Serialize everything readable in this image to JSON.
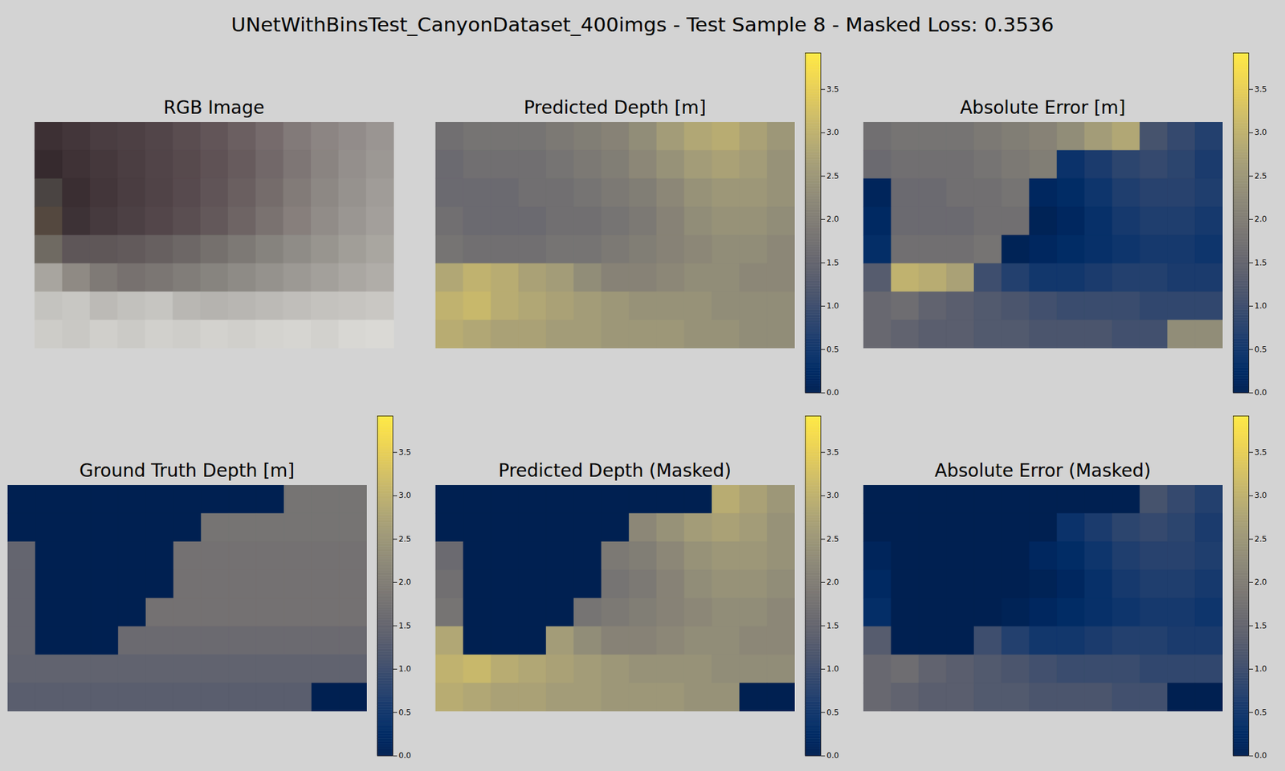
{
  "title": "UNetWithBinsTest_CanyonDataset_400imgs - Test Sample 8 - Masked Loss: 0.3536",
  "chart_data": [
    {
      "type": "image",
      "title": "RGB Image",
      "tick_labels": false,
      "cells": [
        [
          "#3d3034",
          "#43363a",
          "#4a3d41",
          "#4d4044",
          "#524549",
          "#5a4d50",
          "#625558",
          "#6b5f61",
          "#766b6c",
          "#827a79",
          "#8c8583",
          "#928c8a",
          "#9a9592"
        ],
        [
          "#362a2e",
          "#3f3236",
          "#45383c",
          "#4b3e42",
          "#514448",
          "#574a4d",
          "#5f5255",
          "#675b5d",
          "#726869",
          "#7e7675",
          "#8a8481",
          "#948f8c",
          "#9c9894"
        ],
        [
          "#4a4442",
          "#3a2e32",
          "#43363a",
          "#4a3d41",
          "#504347",
          "#574a4e",
          "#605457",
          "#6a5f60",
          "#756c6b",
          "#827b78",
          "#8d8884",
          "#96928e",
          "#a09c98"
        ],
        [
          "#54483f",
          "#3d3236",
          "#463a3e",
          "#4c4044",
          "#53464a",
          "#5a4e51",
          "#63585a",
          "#6e6464",
          "#7a7270",
          "#877f7c",
          "#918c88",
          "#9a9692",
          "#a39f9b"
        ],
        [
          "#6f6a62",
          "#5e5658",
          "#5f5758",
          "#625a5b",
          "#676060",
          "#6d6766",
          "#75706d",
          "#7d7975",
          "#86837e",
          "#8f8c87",
          "#98958f",
          "#a19e98",
          "#a9a6a0"
        ],
        [
          "#a8a59f",
          "#8f8a84",
          "#7f7a76",
          "#77716f",
          "#7b7673",
          "#817d79",
          "#87847f",
          "#8e8b86",
          "#95928d",
          "#9c9994",
          "#a3a09b",
          "#aaa7a2",
          "#b0ada8"
        ],
        [
          "#c4c3bf",
          "#c8c7c3",
          "#bcbab6",
          "#c2c1bd",
          "#c6c5c1",
          "#b9b7b3",
          "#b5b3af",
          "#b8b6b2",
          "#bcbab6",
          "#c0beba",
          "#c4c2be",
          "#c6c4c0",
          "#c9c7c3"
        ],
        [
          "#cdccc8",
          "#c9c8c4",
          "#d0cfcb",
          "#cbcac6",
          "#d1d0cc",
          "#cecdc9",
          "#d3d2ce",
          "#d0cfcb",
          "#d4d3cf",
          "#d6d5d1",
          "#d2d1cd",
          "#d8d7d3",
          "#dad9d5"
        ]
      ]
    },
    {
      "type": "heatmap",
      "title": "Predicted Depth [m]",
      "tick_labels": false,
      "cells": [
        [
          1.7,
          1.8,
          1.8,
          1.8,
          1.9,
          2.0,
          2.1,
          2.3,
          2.6,
          2.8,
          2.9,
          2.7,
          2.5
        ],
        [
          1.6,
          1.7,
          1.7,
          1.7,
          1.8,
          1.9,
          2.0,
          2.2,
          2.4,
          2.6,
          2.7,
          2.6,
          2.4
        ],
        [
          1.6,
          1.6,
          1.6,
          1.7,
          1.7,
          1.8,
          1.9,
          2.0,
          2.2,
          2.4,
          2.5,
          2.5,
          2.4
        ],
        [
          1.7,
          1.6,
          1.6,
          1.6,
          1.7,
          1.7,
          1.8,
          1.9,
          2.1,
          2.3,
          2.4,
          2.4,
          2.3
        ],
        [
          1.8,
          1.7,
          1.7,
          1.7,
          1.8,
          1.8,
          1.9,
          2.0,
          2.1,
          2.2,
          2.3,
          2.3,
          2.2
        ],
        [
          2.8,
          3.0,
          2.9,
          2.7,
          2.6,
          2.3,
          2.1,
          2.1,
          2.2,
          2.3,
          2.3,
          2.2,
          2.2
        ],
        [
          3.0,
          3.1,
          2.9,
          2.8,
          2.7,
          2.6,
          2.5,
          2.4,
          2.4,
          2.4,
          2.3,
          2.3,
          2.3
        ],
        [
          2.9,
          2.8,
          2.7,
          2.7,
          2.6,
          2.6,
          2.5,
          2.5,
          2.5,
          2.4,
          2.4,
          2.3,
          2.3
        ]
      ],
      "colorbar": {
        "range": [
          0,
          3.92
        ],
        "ticks": [
          {
            "value": 0,
            "label": "0.0"
          },
          {
            "value": 0.5,
            "label": "0.5"
          },
          {
            "value": 1,
            "label": "1.0"
          },
          {
            "value": 1.5,
            "label": "1.5"
          },
          {
            "value": 2,
            "label": "2.0"
          },
          {
            "value": 2.5,
            "label": "2.5"
          },
          {
            "value": 3,
            "label": "3.0"
          },
          {
            "value": 3.5,
            "label": "3.5"
          }
        ]
      }
    },
    {
      "type": "heatmap",
      "title": "Absolute Error [m]",
      "tick_labels": false,
      "cells": [
        [
          1.7,
          1.8,
          1.8,
          1.8,
          1.9,
          2.0,
          2.1,
          2.3,
          2.6,
          2.8,
          1.1,
          0.9,
          0.7
        ],
        [
          1.6,
          1.7,
          1.7,
          1.7,
          1.8,
          1.9,
          2.0,
          0.4,
          0.6,
          0.8,
          0.9,
          0.8,
          0.6
        ],
        [
          0.1,
          1.6,
          1.6,
          1.7,
          1.7,
          1.8,
          0.15,
          0.25,
          0.45,
          0.65,
          0.75,
          0.75,
          0.65
        ],
        [
          0.2,
          1.6,
          1.6,
          1.6,
          1.7,
          1.7,
          0.05,
          0.15,
          0.35,
          0.55,
          0.65,
          0.65,
          0.55
        ],
        [
          0.3,
          1.7,
          1.7,
          1.7,
          1.8,
          0.05,
          0.15,
          0.25,
          0.35,
          0.45,
          0.55,
          0.55,
          0.45
        ],
        [
          1.3,
          3.0,
          2.9,
          2.7,
          1.0,
          0.7,
          0.5,
          0.5,
          0.6,
          0.7,
          0.7,
          0.6,
          0.6
        ],
        [
          1.55,
          1.65,
          1.45,
          1.35,
          1.25,
          1.15,
          1.05,
          0.95,
          0.95,
          0.95,
          0.85,
          0.85,
          0.85
        ],
        [
          1.55,
          1.45,
          1.35,
          1.35,
          1.25,
          1.25,
          1.15,
          1.15,
          1.15,
          1.05,
          1.05,
          2.3,
          2.3
        ]
      ],
      "colorbar": {
        "range": [
          0,
          3.92
        ],
        "ticks": [
          {
            "value": 0,
            "label": "0.0"
          },
          {
            "value": 0.5,
            "label": "0.5"
          },
          {
            "value": 1,
            "label": "1.0"
          },
          {
            "value": 1.5,
            "label": "1.5"
          },
          {
            "value": 2,
            "label": "2.0"
          },
          {
            "value": 2.5,
            "label": "2.5"
          },
          {
            "value": 3,
            "label": "3.0"
          },
          {
            "value": 3.5,
            "label": "3.5"
          }
        ]
      }
    },
    {
      "type": "heatmap",
      "title": "Ground Truth Depth [m]",
      "tick_labels": false,
      "cells": [
        [
          0,
          0,
          0,
          0,
          0,
          0,
          0,
          0,
          0,
          0,
          1.8,
          1.8,
          1.8
        ],
        [
          0,
          0,
          0,
          0,
          0,
          0,
          0,
          1.8,
          1.8,
          1.8,
          1.8,
          1.8,
          1.8
        ],
        [
          1.5,
          0,
          0,
          0,
          0,
          0,
          1.75,
          1.75,
          1.75,
          1.75,
          1.75,
          1.75,
          1.75
        ],
        [
          1.5,
          0,
          0,
          0,
          0,
          0,
          1.75,
          1.75,
          1.75,
          1.75,
          1.75,
          1.75,
          1.75
        ],
        [
          1.5,
          0,
          0,
          0,
          0,
          1.75,
          1.75,
          1.75,
          1.75,
          1.75,
          1.75,
          1.75,
          1.75
        ],
        [
          1.5,
          0,
          0,
          0,
          1.6,
          1.6,
          1.6,
          1.6,
          1.6,
          1.6,
          1.6,
          1.6,
          1.6
        ],
        [
          1.45,
          1.45,
          1.45,
          1.45,
          1.45,
          1.45,
          1.45,
          1.45,
          1.45,
          1.45,
          1.45,
          1.45,
          1.45
        ],
        [
          1.35,
          1.35,
          1.35,
          1.35,
          1.35,
          1.35,
          1.35,
          1.35,
          1.35,
          1.35,
          1.35,
          0,
          0
        ]
      ],
      "colorbar": {
        "range": [
          0,
          3.92
        ],
        "ticks": [
          {
            "value": 0,
            "label": "0.0"
          },
          {
            "value": 0.5,
            "label": "0.5"
          },
          {
            "value": 1,
            "label": "1.0"
          },
          {
            "value": 1.5,
            "label": "1.5"
          },
          {
            "value": 2,
            "label": "2.0"
          },
          {
            "value": 2.5,
            "label": "2.5"
          },
          {
            "value": 3,
            "label": "3.0"
          },
          {
            "value": 3.5,
            "label": "3.5"
          }
        ]
      }
    },
    {
      "type": "heatmap",
      "title": "Predicted Depth (Masked)",
      "tick_labels": false,
      "cells": [
        [
          0,
          0,
          0,
          0,
          0,
          0,
          0,
          0,
          0,
          0,
          2.9,
          2.7,
          2.5
        ],
        [
          0,
          0,
          0,
          0,
          0,
          0,
          0,
          2.2,
          2.4,
          2.6,
          2.7,
          2.6,
          2.4
        ],
        [
          1.6,
          0,
          0,
          0,
          0,
          0,
          1.9,
          2.0,
          2.2,
          2.4,
          2.5,
          2.5,
          2.4
        ],
        [
          1.7,
          0,
          0,
          0,
          0,
          0,
          1.8,
          1.9,
          2.1,
          2.3,
          2.4,
          2.4,
          2.3
        ],
        [
          1.8,
          0,
          0,
          0,
          0,
          1.8,
          1.9,
          2.0,
          2.1,
          2.2,
          2.3,
          2.3,
          2.2
        ],
        [
          2.8,
          0,
          0,
          0,
          2.6,
          2.3,
          2.1,
          2.1,
          2.2,
          2.3,
          2.3,
          2.2,
          2.2
        ],
        [
          3.0,
          3.1,
          2.9,
          2.8,
          2.7,
          2.6,
          2.5,
          2.4,
          2.4,
          2.4,
          2.3,
          2.3,
          2.3
        ],
        [
          2.9,
          2.8,
          2.7,
          2.7,
          2.6,
          2.6,
          2.5,
          2.5,
          2.5,
          2.4,
          2.4,
          0,
          0
        ]
      ],
      "colorbar": {
        "range": [
          0,
          3.92
        ],
        "ticks": [
          {
            "value": 0,
            "label": "0.0"
          },
          {
            "value": 0.5,
            "label": "0.5"
          },
          {
            "value": 1,
            "label": "1.0"
          },
          {
            "value": 1.5,
            "label": "1.5"
          },
          {
            "value": 2,
            "label": "2.0"
          },
          {
            "value": 2.5,
            "label": "2.5"
          },
          {
            "value": 3,
            "label": "3.0"
          },
          {
            "value": 3.5,
            "label": "3.5"
          }
        ]
      }
    },
    {
      "type": "heatmap",
      "title": "Absolute Error (Masked)",
      "tick_labels": false,
      "cells": [
        [
          0,
          0,
          0,
          0,
          0,
          0,
          0,
          0,
          0,
          0,
          1.1,
          0.9,
          0.7
        ],
        [
          0,
          0,
          0,
          0,
          0,
          0,
          0,
          0.4,
          0.6,
          0.8,
          0.9,
          0.8,
          0.6
        ],
        [
          0.1,
          0,
          0,
          0,
          0,
          0,
          0.15,
          0.25,
          0.45,
          0.65,
          0.75,
          0.75,
          0.65
        ],
        [
          0.2,
          0,
          0,
          0,
          0,
          0,
          0.05,
          0.15,
          0.35,
          0.55,
          0.65,
          0.65,
          0.55
        ],
        [
          0.3,
          0,
          0,
          0,
          0,
          0.05,
          0.15,
          0.25,
          0.35,
          0.45,
          0.55,
          0.55,
          0.45
        ],
        [
          1.3,
          0,
          0,
          0,
          1.0,
          0.7,
          0.5,
          0.5,
          0.6,
          0.7,
          0.7,
          0.6,
          0.6
        ],
        [
          1.55,
          1.65,
          1.45,
          1.35,
          1.25,
          1.15,
          1.05,
          0.95,
          0.95,
          0.95,
          0.85,
          0.85,
          0.85
        ],
        [
          1.55,
          1.45,
          1.35,
          1.35,
          1.25,
          1.25,
          1.15,
          1.15,
          1.15,
          1.05,
          1.05,
          0,
          0
        ]
      ],
      "colorbar": {
        "range": [
          0,
          3.92
        ],
        "ticks": [
          {
            "value": 0,
            "label": "0.0"
          },
          {
            "value": 0.5,
            "label": "0.5"
          },
          {
            "value": 1,
            "label": "1.0"
          },
          {
            "value": 1.5,
            "label": "1.5"
          },
          {
            "value": 2,
            "label": "2.0"
          },
          {
            "value": 2.5,
            "label": "2.5"
          },
          {
            "value": 3,
            "label": "3.0"
          },
          {
            "value": 3.5,
            "label": "3.5"
          }
        ]
      }
    }
  ]
}
